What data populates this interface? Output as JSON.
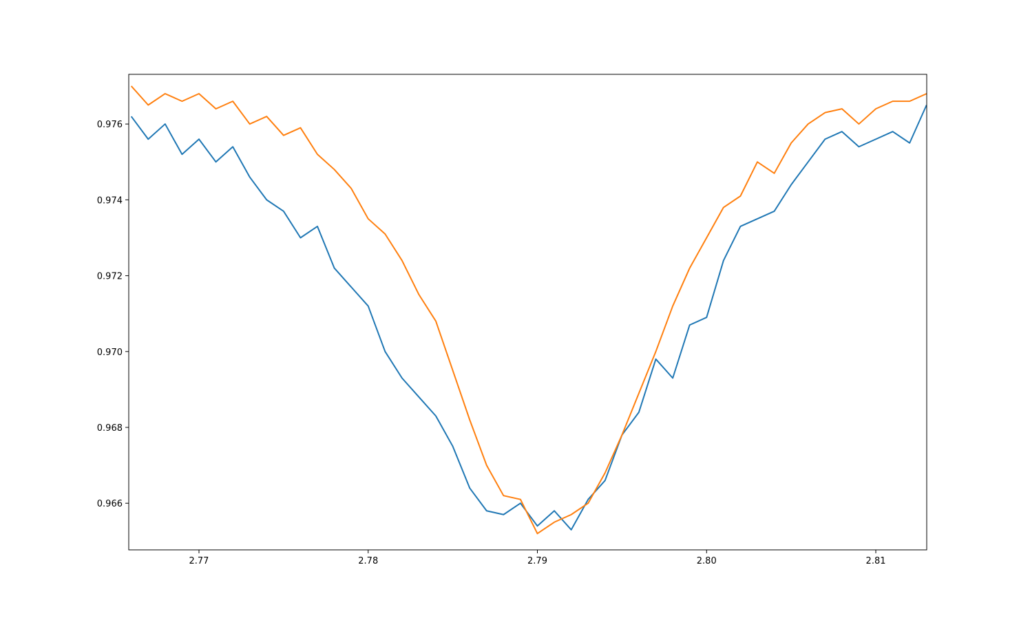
{
  "chart_data": {
    "type": "line",
    "x": [
      2.766,
      2.767,
      2.768,
      2.769,
      2.77,
      2.771,
      2.772,
      2.773,
      2.774,
      2.775,
      2.776,
      2.777,
      2.778,
      2.779,
      2.78,
      2.781,
      2.782,
      2.783,
      2.784,
      2.785,
      2.786,
      2.787,
      2.788,
      2.789,
      2.79,
      2.791,
      2.792,
      2.793,
      2.794,
      2.795,
      2.796,
      2.797,
      2.798,
      2.799,
      2.8,
      2.801,
      2.802,
      2.803,
      2.804,
      2.805,
      2.806,
      2.807,
      2.808,
      2.809,
      2.81,
      2.811,
      2.812,
      2.813
    ],
    "series": [
      {
        "color": "#1f77b4",
        "values": [
          0.9762,
          0.9756,
          0.976,
          0.9752,
          0.9756,
          0.975,
          0.9754,
          0.9746,
          0.974,
          0.9737,
          0.973,
          0.9733,
          0.9722,
          0.9717,
          0.9712,
          0.97,
          0.9693,
          0.9688,
          0.9683,
          0.9675,
          0.9664,
          0.9658,
          0.9657,
          0.966,
          0.9654,
          0.9658,
          0.9653,
          0.9661,
          0.9666,
          0.9678,
          0.9684,
          0.9698,
          0.9693,
          0.9707,
          0.9709,
          0.9724,
          0.9733,
          0.9735,
          0.9737,
          0.9744,
          0.975,
          0.9756,
          0.9758,
          0.9754,
          0.9756,
          0.9758,
          0.9755,
          0.9765
        ]
      },
      {
        "color": "#ff7f0e",
        "values": [
          0.977,
          0.9765,
          0.9768,
          0.9766,
          0.9768,
          0.9764,
          0.9766,
          0.976,
          0.9762,
          0.9757,
          0.9759,
          0.9752,
          0.9748,
          0.9743,
          0.9735,
          0.9731,
          0.9724,
          0.9715,
          0.9708,
          0.9695,
          0.9682,
          0.967,
          0.9662,
          0.9661,
          0.9652,
          0.9655,
          0.9657,
          0.966,
          0.9668,
          0.9678,
          0.9689,
          0.97,
          0.9712,
          0.9722,
          0.973,
          0.9738,
          0.9741,
          0.975,
          0.9747,
          0.9755,
          0.976,
          0.9763,
          0.9764,
          0.976,
          0.9764,
          0.9766,
          0.9766,
          0.9768
        ]
      }
    ],
    "xlim": [
      2.76585,
      2.81301
    ],
    "ylim": [
      0.96477,
      0.97731
    ],
    "xticks": [
      2.77,
      2.78,
      2.79,
      {
        "value": 2.8,
        "label": "2.80"
      },
      2.81
    ],
    "yticks": [
      0.966,
      0.968,
      {
        "value": 0.97,
        "label": "0.970"
      },
      0.972,
      0.974,
      0.976
    ]
  }
}
